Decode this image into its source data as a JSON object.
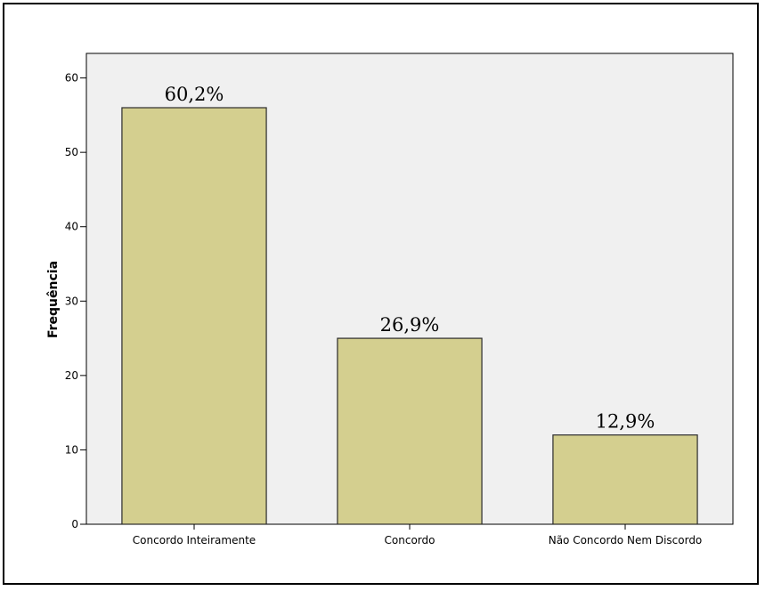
{
  "chart_data": {
    "type": "bar",
    "title": "",
    "xlabel": "",
    "ylabel": "Frequência",
    "categories": [
      "Concordo Inteiramente",
      "Concordo",
      "Não Concordo Nem Discordo"
    ],
    "values": [
      56,
      25,
      12
    ],
    "data_labels": [
      "60,2%",
      "26,9%",
      "12,9%"
    ],
    "ylim": [
      0,
      60
    ],
    "yticks": [
      0,
      10,
      20,
      30,
      40,
      50,
      60
    ],
    "grid": false,
    "legend": "none",
    "colors": {
      "bar_fill": "#d4cf8f",
      "bar_stroke": "#2b2b2b",
      "plot_background": "#f0f0f0",
      "axis": "#000000"
    }
  }
}
